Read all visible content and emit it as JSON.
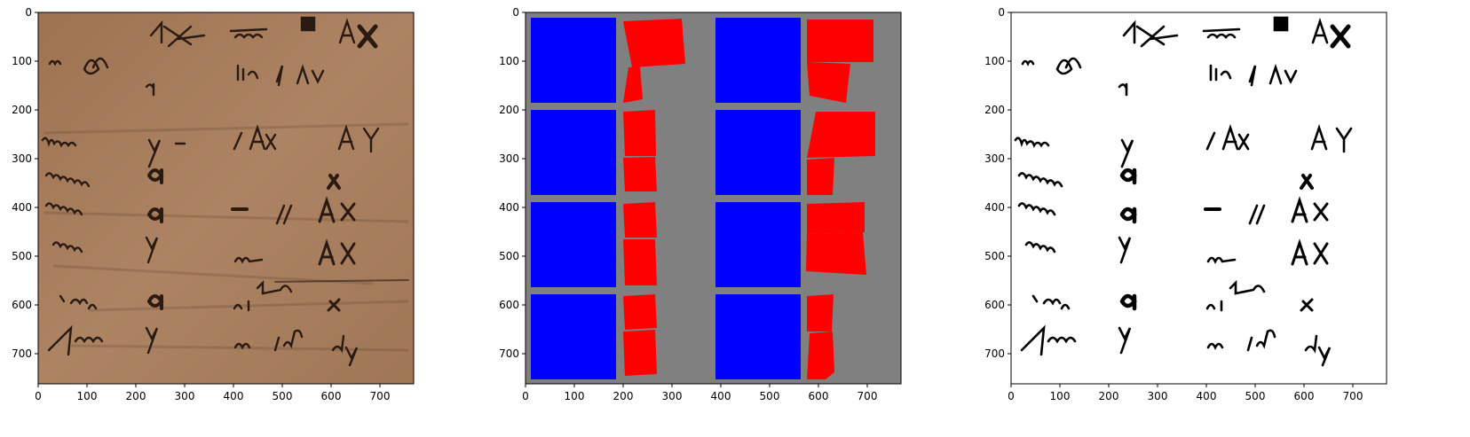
{
  "colors": {
    "parchment": "#a77b5c",
    "parchment_dark": "#7f5c45",
    "ink": "#2a1a12",
    "layout_bg": "#808080",
    "image_region": "#0000ff",
    "text_region": "#ff0000",
    "binarized_bg": "#ffffff",
    "binarized_ink": "#000000"
  },
  "panels": [
    {
      "name": "original-scan",
      "x_ticks": [
        "0",
        "100",
        "200",
        "300",
        "400",
        "500",
        "600",
        "700"
      ],
      "y_ticks": [
        "0",
        "100",
        "200",
        "300",
        "400",
        "500",
        "600",
        "700"
      ],
      "handwriting": [
        {
          "text": "n",
          "col": "left"
        },
        {
          "text": "ee",
          "col": "left"
        },
        {
          "text": "4x",
          "col": "left"
        },
        {
          "text": "dy",
          "col": "left"
        },
        {
          "text": "iv≈øm",
          "col": "left"
        },
        {
          "text": "y",
          "col": "left"
        },
        {
          "text": "'anavi",
          "col": "left"
        },
        {
          "text": "a",
          "col": "left"
        },
        {
          "text": "gnatv",
          "col": "left"
        },
        {
          "text": "a",
          "col": "left"
        },
        {
          "text": "rem",
          "col": "left"
        },
        {
          "text": "y",
          "col": "left"
        },
        {
          "text": "'dr fu",
          "col": "left"
        },
        {
          "text": "a",
          "col": "left"
        },
        {
          "text": "Theoi",
          "col": "left"
        },
        {
          "text": "y",
          "col": "left"
        },
        {
          "text": "non",
          "col": "right"
        },
        {
          "text": "A",
          "col": "right"
        },
        {
          "text": "X",
          "col": "right"
        },
        {
          "text": "lia",
          "col": "right"
        },
        {
          "text": "AV",
          "col": "right"
        },
        {
          "text": "Axis",
          "col": "right"
        },
        {
          "text": "A",
          "col": "right"
        },
        {
          "text": "Y",
          "col": "right"
        },
        {
          "text": "x",
          "col": "right"
        },
        {
          "text": "A",
          "col": "right"
        },
        {
          "text": "X",
          "col": "right"
        },
        {
          "text": "m",
          "col": "right"
        },
        {
          "text": "A",
          "col": "right"
        },
        {
          "text": "X",
          "col": "right"
        },
        {
          "text": "ut",
          "col": "right"
        },
        {
          "text": "x",
          "col": "right"
        },
        {
          "text": "n",
          "col": "right"
        },
        {
          "text": "infe",
          "col": "right"
        },
        {
          "text": "dy",
          "col": "right"
        }
      ]
    },
    {
      "name": "layout-mask",
      "x_ticks": [
        "0",
        "100",
        "200",
        "300",
        "400",
        "500",
        "600",
        "700"
      ],
      "y_ticks": [
        "0",
        "100",
        "200",
        "300",
        "400",
        "500",
        "600",
        "700"
      ]
    },
    {
      "name": "binarized",
      "x_ticks": [
        "0",
        "100",
        "200",
        "300",
        "400",
        "500",
        "600",
        "700"
      ],
      "y_ticks": [
        "0",
        "100",
        "200",
        "300",
        "400",
        "500",
        "600",
        "700"
      ]
    }
  ]
}
